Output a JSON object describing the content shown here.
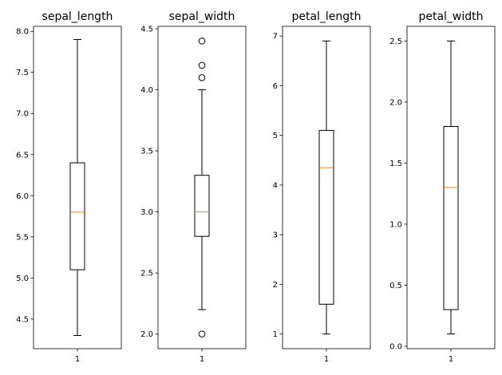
{
  "chart_data": [
    {
      "type": "boxplot",
      "title": "sepal_length",
      "xticks": [
        "1"
      ],
      "ylim": [
        4.14,
        8.06
      ],
      "yticks": [
        4.5,
        5.0,
        5.5,
        6.0,
        6.5,
        7.0,
        7.5,
        8.0
      ],
      "ytick_labels": [
        "4.5",
        "5.0",
        "5.5",
        "6.0",
        "6.5",
        "7.0",
        "7.5",
        "8.0"
      ],
      "whisker_low": 4.3,
      "q1": 5.1,
      "median": 5.8,
      "q3": 6.4,
      "whisker_high": 7.9,
      "outliers": []
    },
    {
      "type": "boxplot",
      "title": "sepal_width",
      "xticks": [
        "1"
      ],
      "ylim": [
        1.88,
        4.52
      ],
      "yticks": [
        2.0,
        2.5,
        3.0,
        3.5,
        4.0,
        4.5
      ],
      "ytick_labels": [
        "2.0",
        "2.5",
        "3.0",
        "3.5",
        "4.0",
        "4.5"
      ],
      "whisker_low": 2.2,
      "q1": 2.8,
      "median": 3.0,
      "q3": 3.3,
      "whisker_high": 4.0,
      "outliers": [
        2.0,
        4.1,
        4.2,
        4.4
      ]
    },
    {
      "type": "boxplot",
      "title": "petal_length",
      "xticks": [
        "1"
      ],
      "ylim": [
        0.705,
        7.195
      ],
      "yticks": [
        1,
        2,
        3,
        4,
        5,
        6,
        7
      ],
      "ytick_labels": [
        "1",
        "2",
        "3",
        "4",
        "5",
        "6",
        "7"
      ],
      "whisker_low": 1.0,
      "q1": 1.6,
      "median": 4.35,
      "q3": 5.1,
      "whisker_high": 6.9,
      "outliers": []
    },
    {
      "type": "boxplot",
      "title": "petal_width",
      "xticks": [
        "1"
      ],
      "ylim": [
        -0.02,
        2.62
      ],
      "yticks": [
        0.0,
        0.5,
        1.0,
        1.5,
        2.0,
        2.5
      ],
      "ytick_labels": [
        "0.0",
        "0.5",
        "1.0",
        "1.5",
        "2.0",
        "2.5"
      ],
      "whisker_low": 0.1,
      "q1": 0.3,
      "median": 1.3,
      "q3": 1.8,
      "whisker_high": 2.5,
      "outliers": []
    }
  ],
  "colors": {
    "box": "#000000",
    "median": "#ff7f0e",
    "background": "#ffffff"
  }
}
